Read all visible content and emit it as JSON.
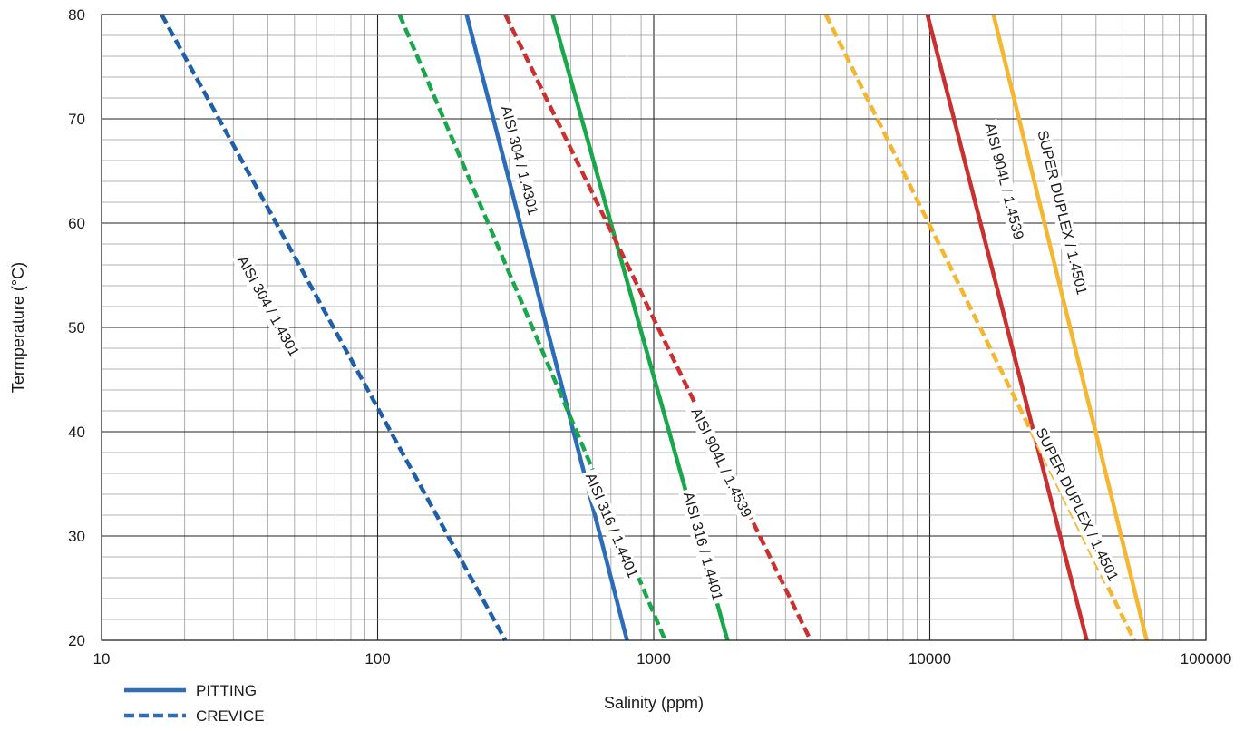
{
  "chart_data": {
    "type": "line",
    "xlabel": "Salinity (ppm)",
    "ylabel": "Termperature  (°C)",
    "x_scale": "log",
    "xlim": [
      10,
      100000
    ],
    "ylim": [
      20,
      80
    ],
    "x_ticks": [
      {
        "value": 10,
        "label": "10"
      },
      {
        "value": 100,
        "label": "100"
      },
      {
        "value": 1000,
        "label": "1000"
      },
      {
        "value": 10000,
        "label": "10000"
      },
      {
        "value": 100000,
        "label": "100000"
      }
    ],
    "y_ticks": [
      {
        "value": 20,
        "label": "20"
      },
      {
        "value": 30,
        "label": "30"
      },
      {
        "value": 40,
        "label": "40"
      },
      {
        "value": 50,
        "label": "50"
      },
      {
        "value": 60,
        "label": "60"
      },
      {
        "value": 70,
        "label": "70"
      },
      {
        "value": 80,
        "label": "80"
      }
    ],
    "grid": true,
    "legend_position": "bottom-left",
    "legend": [
      {
        "label": "PITTING",
        "style": "solid",
        "color": "#2f6db5"
      },
      {
        "label": "CREVICE",
        "style": "dashed",
        "color": "#2f6db5"
      }
    ],
    "series": [
      {
        "label": "AISI 304 / 1.4301",
        "mode": "crevice",
        "color": "#1f5fa8",
        "points": [
          [
            16.5,
            80
          ],
          [
            290,
            20
          ]
        ]
      },
      {
        "label": "AISI 304 / 1.4301",
        "mode": "pitting",
        "color": "#2b6db8",
        "points": [
          [
            210,
            80
          ],
          [
            800,
            20
          ]
        ]
      },
      {
        "label": "AISI 316 / 1.4401",
        "mode": "crevice",
        "color": "#1aa64a",
        "points": [
          [
            120,
            80
          ],
          [
            1100,
            20
          ]
        ]
      },
      {
        "label": "AISI 316 / 1.4401",
        "mode": "pitting",
        "color": "#1aa64a",
        "points": [
          [
            430,
            80
          ],
          [
            1850,
            20
          ]
        ]
      },
      {
        "label": "AISI 904L / 1.4539",
        "mode": "crevice",
        "color": "#c93030",
        "points": [
          [
            290,
            80
          ],
          [
            3700,
            20
          ]
        ]
      },
      {
        "label": "AISI 904L / 1.4539",
        "mode": "pitting",
        "color": "#c93030",
        "points": [
          [
            9800,
            80
          ],
          [
            37000,
            20
          ]
        ]
      },
      {
        "label": "SUPER DUPLEX / 1.4501",
        "mode": "crevice",
        "color": "#f5b731",
        "points": [
          [
            4200,
            80
          ],
          [
            55000,
            20
          ]
        ]
      },
      {
        "label": "SUPER DUPLEX / 1.4501",
        "mode": "pitting",
        "color": "#f5b731",
        "points": [
          [
            17000,
            80
          ],
          [
            61000,
            20
          ]
        ]
      }
    ],
    "annotations": [
      {
        "text": "AISI 304 / 1.4301",
        "series": 0,
        "at": [
          40,
          52
        ]
      },
      {
        "text": "AISI 304 / 1.4301",
        "series": 1,
        "at": [
          325,
          66
        ]
      },
      {
        "text": "AISI 316 / 1.4401",
        "series": 2,
        "at": [
          700,
          31
        ]
      },
      {
        "text": "AISI 316 / 1.4401",
        "series": 3,
        "at": [
          1500,
          29
        ]
      },
      {
        "text": "AISI 904L / 1.4539",
        "series": 4,
        "at": [
          1750,
          37
        ]
      },
      {
        "text": "AISI 904L / 1.4539",
        "series": 5,
        "at": [
          18500,
          64
        ]
      },
      {
        "text": "SUPER DUPLEX / 1.4501",
        "series": 6,
        "at": [
          34000,
          33
        ]
      },
      {
        "text": "SUPER DUPLEX / 1.4501",
        "series": 7,
        "at": [
          30000,
          61
        ]
      }
    ]
  }
}
